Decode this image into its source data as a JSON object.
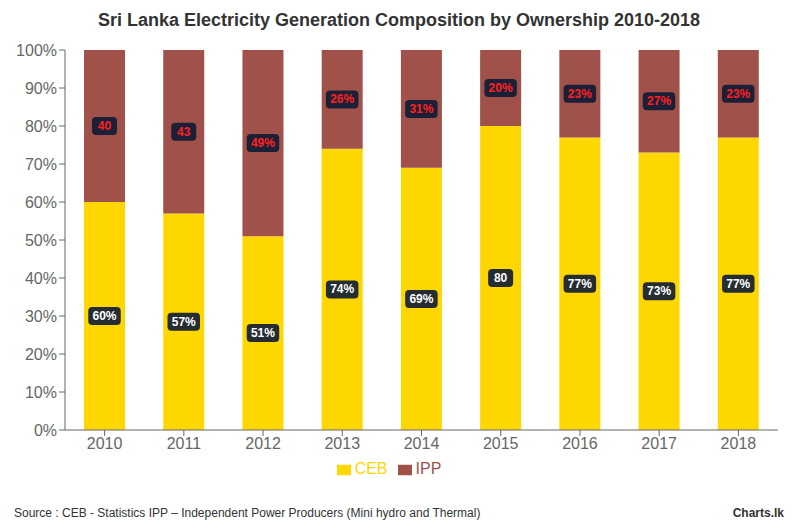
{
  "chart_data": {
    "type": "bar",
    "title": "Sri Lanka Electricity Generation Composition by Ownership 2010-2018",
    "categories": [
      "2010",
      "2011",
      "2012",
      "2013",
      "2014",
      "2015",
      "2016",
      "2017",
      "2018"
    ],
    "series": [
      {
        "name": "CEB",
        "color": "#FFD700",
        "values": [
          60,
          57,
          51,
          74,
          69,
          80,
          77,
          73,
          77
        ],
        "value_labels": [
          "60%",
          "57%",
          "51%",
          "74%",
          "69%",
          "80",
          "77%",
          "73%",
          "77%"
        ]
      },
      {
        "name": "IPP",
        "color": "#A0524A",
        "values": [
          40,
          43,
          49,
          26,
          31,
          20,
          23,
          27,
          23
        ],
        "value_labels": [
          "40",
          "43",
          "49%",
          "26%",
          "31%",
          "20%",
          "23%",
          "27%",
          "23%"
        ]
      }
    ],
    "stacked": true,
    "data_labels": true,
    "ylim": [
      0,
      100
    ],
    "yticks": [
      {
        "value": 0,
        "label": "0%"
      },
      {
        "value": 10,
        "label": "10%"
      },
      {
        "value": 20,
        "label": "20%"
      },
      {
        "value": 30,
        "label": "30%"
      },
      {
        "value": 40,
        "label": "40%"
      },
      {
        "value": 50,
        "label": "50%"
      },
      {
        "value": 60,
        "label": "60%"
      },
      {
        "value": 70,
        "label": "70%"
      },
      {
        "value": 80,
        "label": "80%"
      },
      {
        "value": 90,
        "label": "90%"
      },
      {
        "value": 100,
        "label": "100%"
      }
    ],
    "grid": false,
    "legend": "bottom",
    "annotations": [
      "Source : CEB - Statistics    IPP – Independent Power Producers (Mini hydro and Thermal)",
      "Charts.lk"
    ]
  }
}
